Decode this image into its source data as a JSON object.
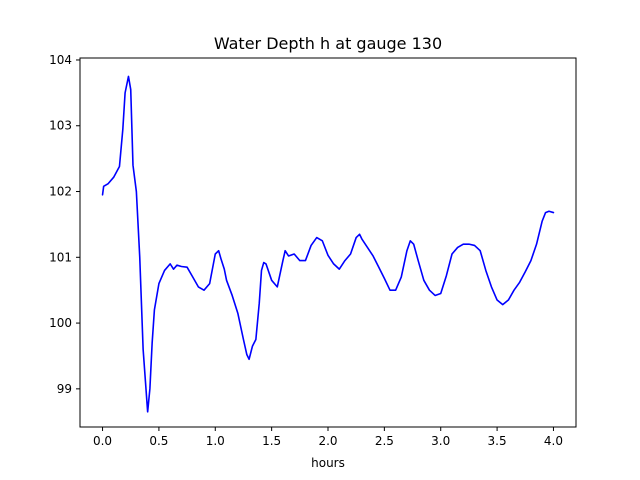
{
  "chart_data": {
    "type": "line",
    "title": "Water Depth h at gauge 130",
    "xlabel": "hours",
    "ylabel": "",
    "xlim": [
      -0.2,
      4.2
    ],
    "ylim": [
      98.42,
      104.03
    ],
    "xticks": [
      "0.0",
      "0.5",
      "1.0",
      "1.5",
      "2.0",
      "2.5",
      "3.0",
      "3.5",
      "4.0"
    ],
    "xtick_values": [
      0.0,
      0.5,
      1.0,
      1.5,
      2.0,
      2.5,
      3.0,
      3.5,
      4.0
    ],
    "yticks": [
      "99",
      "100",
      "101",
      "102",
      "103",
      "104"
    ],
    "ytick_values": [
      99,
      100,
      101,
      102,
      103,
      104
    ],
    "grid": false,
    "series": [
      {
        "color": "#0000ff",
        "x": [
          0.0,
          0.01,
          0.05,
          0.1,
          0.15,
          0.18,
          0.2,
          0.23,
          0.25,
          0.27,
          0.3,
          0.33,
          0.36,
          0.4,
          0.42,
          0.44,
          0.46,
          0.5,
          0.55,
          0.6,
          0.63,
          0.66,
          0.7,
          0.75,
          0.8,
          0.85,
          0.9,
          0.95,
          1.0,
          1.03,
          1.05,
          1.08,
          1.1,
          1.15,
          1.2,
          1.25,
          1.28,
          1.3,
          1.33,
          1.36,
          1.39,
          1.41,
          1.43,
          1.45,
          1.5,
          1.55,
          1.6,
          1.62,
          1.65,
          1.7,
          1.75,
          1.8,
          1.85,
          1.9,
          1.95,
          2.0,
          2.05,
          2.1,
          2.15,
          2.2,
          2.25,
          2.28,
          2.3,
          2.35,
          2.4,
          2.45,
          2.5,
          2.55,
          2.6,
          2.65,
          2.7,
          2.73,
          2.76,
          2.8,
          2.85,
          2.9,
          2.95,
          3.0,
          3.05,
          3.1,
          3.15,
          3.2,
          3.25,
          3.3,
          3.35,
          3.4,
          3.45,
          3.5,
          3.55,
          3.6,
          3.65,
          3.7,
          3.75,
          3.8,
          3.85,
          3.9,
          3.93,
          3.96,
          4.0
        ],
        "y": [
          101.95,
          102.08,
          102.12,
          102.22,
          102.38,
          102.95,
          103.5,
          103.75,
          103.55,
          102.4,
          102.0,
          101.0,
          99.6,
          98.65,
          99.0,
          99.7,
          100.2,
          100.6,
          100.8,
          100.9,
          100.82,
          100.88,
          100.86,
          100.85,
          100.7,
          100.55,
          100.5,
          100.6,
          101.05,
          101.1,
          100.98,
          100.82,
          100.65,
          100.42,
          100.15,
          99.75,
          99.52,
          99.45,
          99.65,
          99.75,
          100.3,
          100.8,
          100.92,
          100.9,
          100.65,
          100.55,
          100.95,
          101.1,
          101.02,
          101.05,
          100.95,
          100.95,
          101.18,
          101.3,
          101.25,
          101.03,
          100.9,
          100.82,
          100.95,
          101.05,
          101.3,
          101.35,
          101.28,
          101.15,
          101.02,
          100.85,
          100.68,
          100.5,
          100.5,
          100.7,
          101.1,
          101.25,
          101.2,
          100.95,
          100.65,
          100.5,
          100.42,
          100.45,
          100.72,
          101.05,
          101.15,
          101.2,
          101.2,
          101.18,
          101.1,
          100.8,
          100.55,
          100.35,
          100.28,
          100.35,
          100.5,
          100.62,
          100.78,
          100.95,
          101.2,
          101.55,
          101.68,
          101.7,
          101.68
        ]
      }
    ]
  }
}
